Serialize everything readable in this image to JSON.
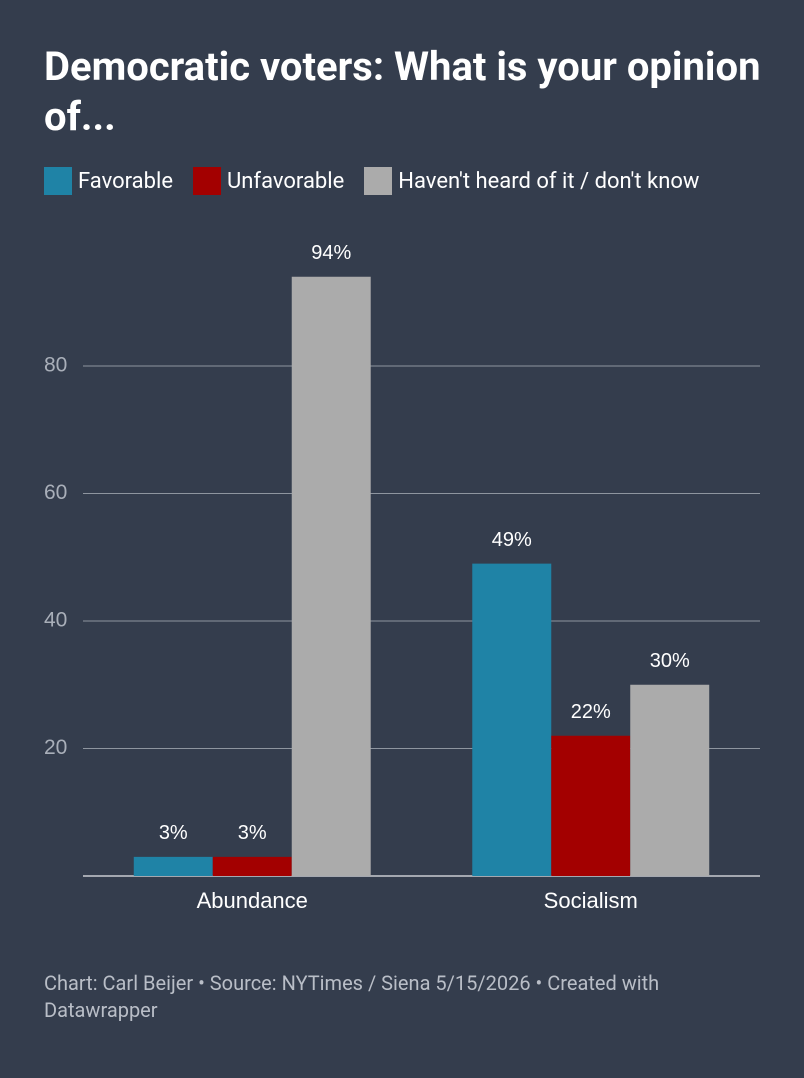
{
  "chart_data": {
    "type": "bar",
    "title": "Democratic voters: What is your opinion of...",
    "categories": [
      "Abundance",
      "Socialism"
    ],
    "series": [
      {
        "name": "Favorable",
        "color": "#1f83a6",
        "values": [
          3,
          49
        ],
        "value_labels": [
          "3%",
          "49%"
        ]
      },
      {
        "name": "Unfavorable",
        "color": "#a30000",
        "values": [
          3,
          22
        ],
        "value_labels": [
          "3%",
          "22%"
        ]
      },
      {
        "name": "Haven't heard of it / don't know",
        "color": "#ababab",
        "values": [
          94,
          30
        ],
        "value_labels": [
          "94%",
          "30%"
        ]
      }
    ],
    "ylim": [
      0,
      100
    ],
    "yticks": [
      20,
      40,
      60,
      80
    ],
    "grid": true,
    "footer": "Chart: Carl Beijer • Source: NYTimes / Siena 5/15/2026 • Created with Datawrapper"
  }
}
